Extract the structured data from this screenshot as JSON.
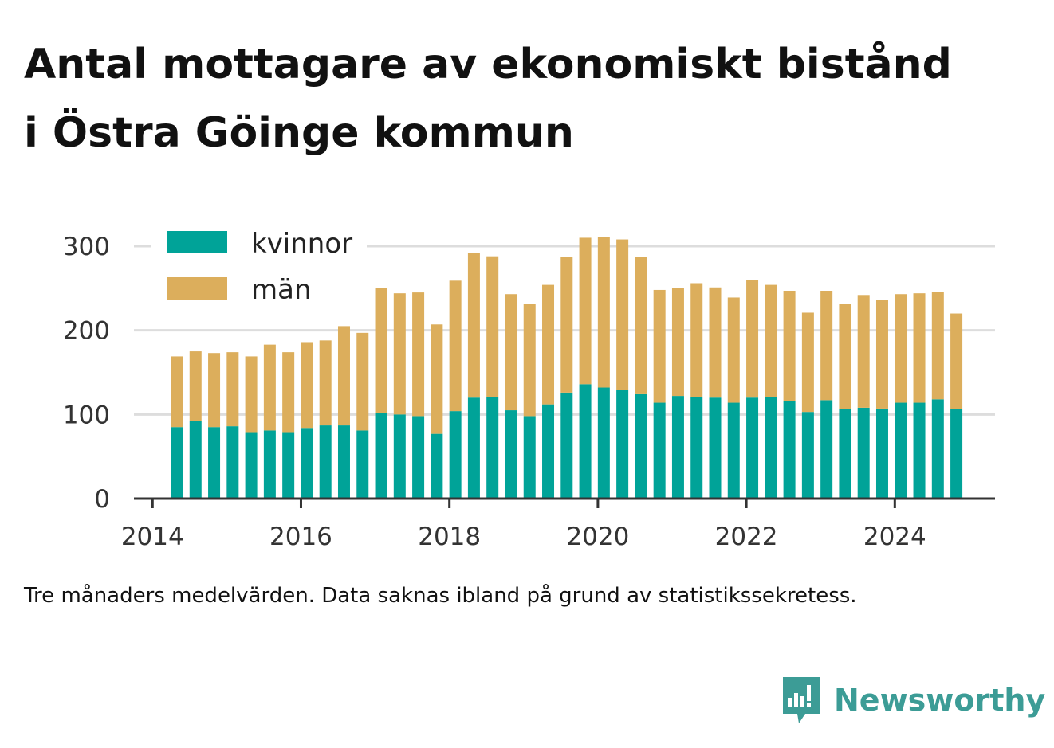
{
  "title": {
    "line1": "Antal mottagare av ekonomiskt bistånd",
    "line2": "i Östra Göinge kommun"
  },
  "note": "Tre månaders medelvärden. Data saknas ibland på grund av statistikssekretess.",
  "brand": {
    "name": "Newsworthy",
    "icon": "newsworthy-logo-icon"
  },
  "colors": {
    "kvinnor": "#00a398",
    "man": "#dcae5c",
    "grid": "#dddddd",
    "axis": "#333333"
  },
  "chart_data": {
    "type": "bar",
    "stacked": true,
    "xlim": [
      2013.75,
      2025.35
    ],
    "ylim": [
      0,
      310
    ],
    "yticks": [
      0,
      100,
      200,
      300
    ],
    "xticks": [
      "2014",
      "2016",
      "2018",
      "2020",
      "2022",
      "2024"
    ],
    "grid": true,
    "legend": "top-left",
    "x": [
      2014.33,
      2014.58,
      2014.83,
      2015.08,
      2015.33,
      2015.58,
      2015.83,
      2016.08,
      2016.33,
      2016.58,
      2016.83,
      2017.08,
      2017.33,
      2017.58,
      2017.83,
      2018.08,
      2018.33,
      2018.58,
      2018.83,
      2019.08,
      2019.33,
      2019.58,
      2019.83,
      2020.08,
      2020.33,
      2020.58,
      2020.83,
      2021.08,
      2021.33,
      2021.58,
      2021.83,
      2022.08,
      2022.33,
      2022.58,
      2022.83,
      2023.08,
      2023.33,
      2023.58,
      2023.83,
      2024.08,
      2024.33,
      2024.58,
      2024.83
    ],
    "series": [
      {
        "name": "kvinnor",
        "color": "#00a398",
        "values": [
          85,
          92,
          85,
          86,
          79,
          81,
          79,
          84,
          87,
          87,
          81,
          102,
          100,
          98,
          77,
          104,
          120,
          121,
          105,
          98,
          112,
          126,
          136,
          132,
          129,
          125,
          114,
          122,
          121,
          120,
          114,
          120,
          121,
          116,
          103,
          117,
          106,
          108,
          107,
          114,
          114,
          118,
          106
        ]
      },
      {
        "name": "män",
        "color": "#dcae5c",
        "values": [
          84,
          83,
          88,
          88,
          90,
          102,
          95,
          102,
          101,
          118,
          116,
          148,
          144,
          147,
          130,
          155,
          172,
          167,
          138,
          133,
          142,
          161,
          174,
          179,
          179,
          162,
          134,
          128,
          135,
          131,
          125,
          140,
          133,
          131,
          118,
          130,
          125,
          134,
          129,
          129,
          130,
          128,
          114
        ]
      }
    ]
  }
}
